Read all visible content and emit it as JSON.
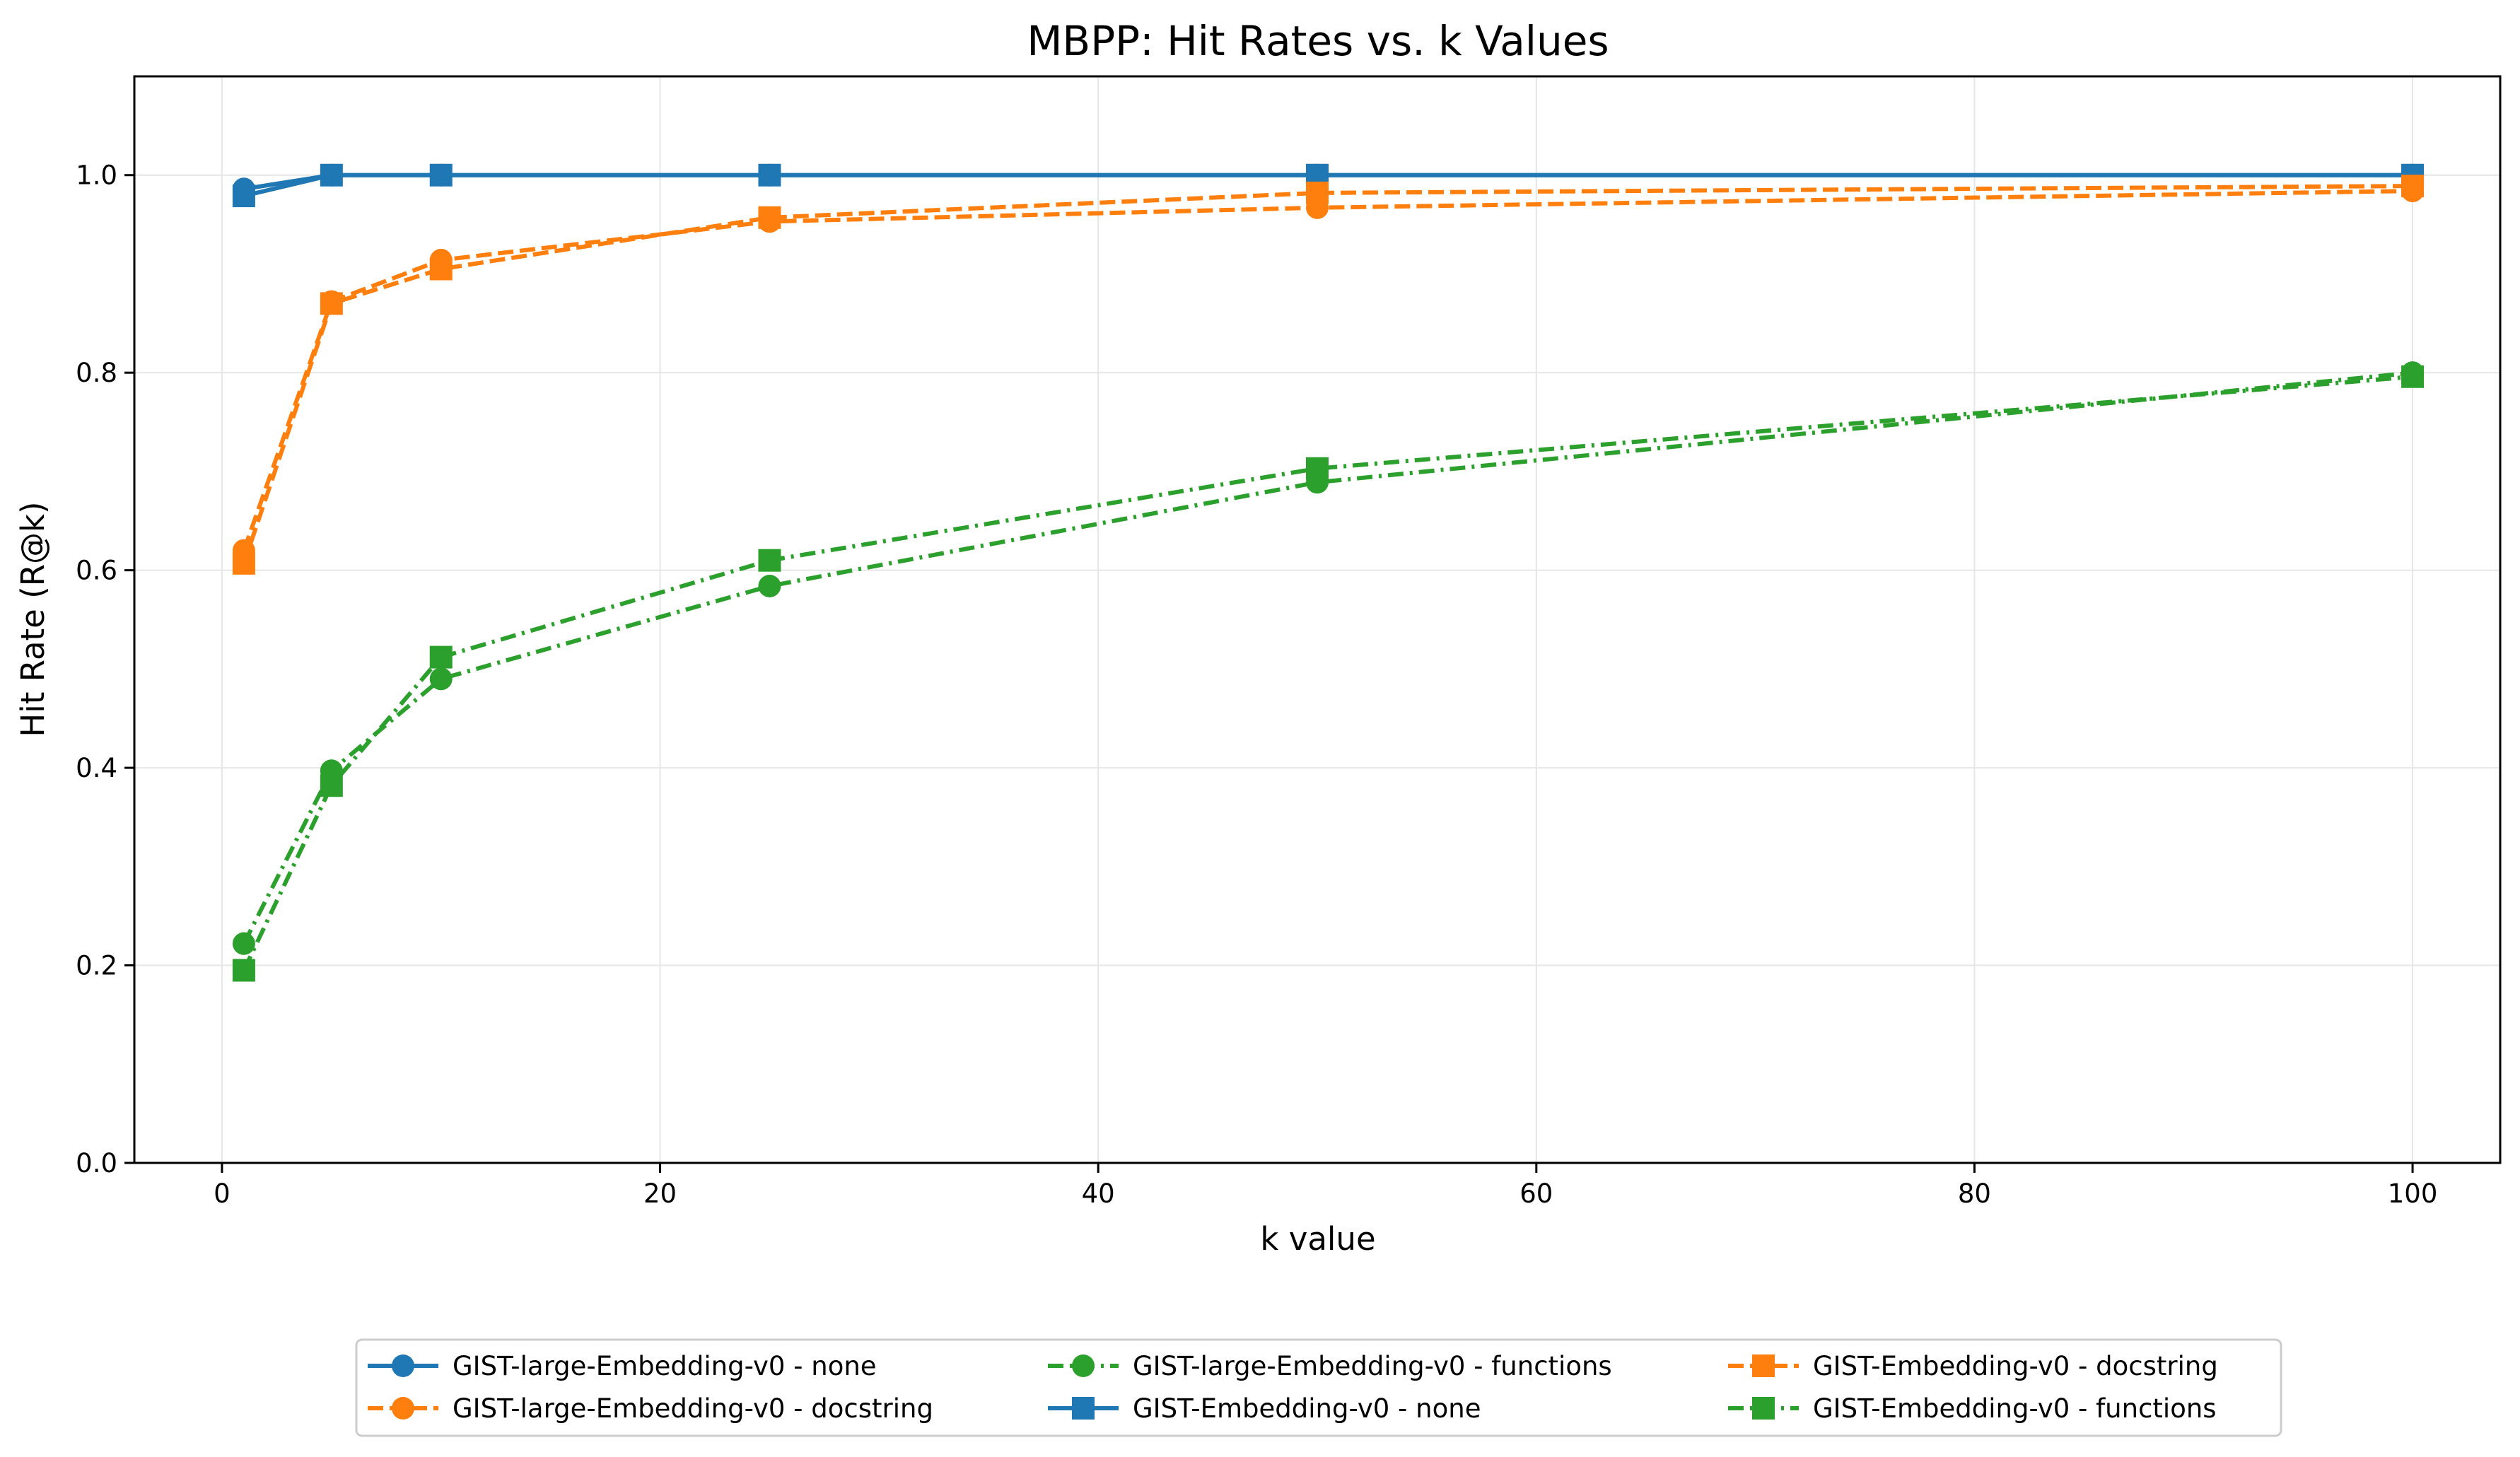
{
  "chart_data": {
    "type": "line",
    "title": "MBPP: Hit Rates vs. k Values",
    "xlabel": "k value",
    "ylabel": "Hit Rate (R@k)",
    "xlim": [
      -4,
      104
    ],
    "ylim": [
      0.0,
      1.1
    ],
    "xticks": [
      "0",
      "20",
      "40",
      "60",
      "80",
      "100"
    ],
    "yticks": [
      "0.0",
      "0.2",
      "0.4",
      "0.6",
      "0.8",
      "1.0"
    ],
    "grid": true,
    "legend_position": "bottom-center",
    "series": [
      {
        "name": "GIST-large-Embedding-v0 - none",
        "color": "#1f77b4",
        "marker": "circle",
        "dash": "solid",
        "x": [
          1,
          5,
          10,
          25,
          50,
          100
        ],
        "y": [
          0.986,
          1.0,
          1.0,
          1.0,
          1.0,
          1.0
        ]
      },
      {
        "name": "GIST-large-Embedding-v0 - docstring",
        "color": "#ff7f0e",
        "marker": "circle",
        "dash": "dashed",
        "x": [
          1,
          5,
          10,
          25,
          50,
          100
        ],
        "y": [
          0.62,
          0.872,
          0.914,
          0.953,
          0.967,
          0.984
        ]
      },
      {
        "name": "GIST-large-Embedding-v0 - functions",
        "color": "#2ca02c",
        "marker": "circle",
        "dash": "dashdot",
        "x": [
          1,
          5,
          10,
          25,
          50,
          100
        ],
        "y": [
          0.222,
          0.397,
          0.49,
          0.584,
          0.689,
          0.8
        ]
      },
      {
        "name": "GIST-Embedding-v0 - none",
        "color": "#1f77b4",
        "marker": "square",
        "dash": "solid",
        "x": [
          1,
          5,
          10,
          25,
          50,
          100
        ],
        "y": [
          0.979,
          1.0,
          1.0,
          1.0,
          1.0,
          1.0
        ]
      },
      {
        "name": "GIST-Embedding-v0 - docstring",
        "color": "#ff7f0e",
        "marker": "square",
        "dash": "dashed",
        "x": [
          1,
          5,
          10,
          25,
          50,
          100
        ],
        "y": [
          0.607,
          0.87,
          0.905,
          0.957,
          0.982,
          0.989
        ]
      },
      {
        "name": "GIST-Embedding-v0 - functions",
        "color": "#2ca02c",
        "marker": "square",
        "dash": "dashdot",
        "x": [
          1,
          5,
          10,
          25,
          50,
          100
        ],
        "y": [
          0.195,
          0.382,
          0.512,
          0.61,
          0.703,
          0.796
        ]
      }
    ]
  }
}
